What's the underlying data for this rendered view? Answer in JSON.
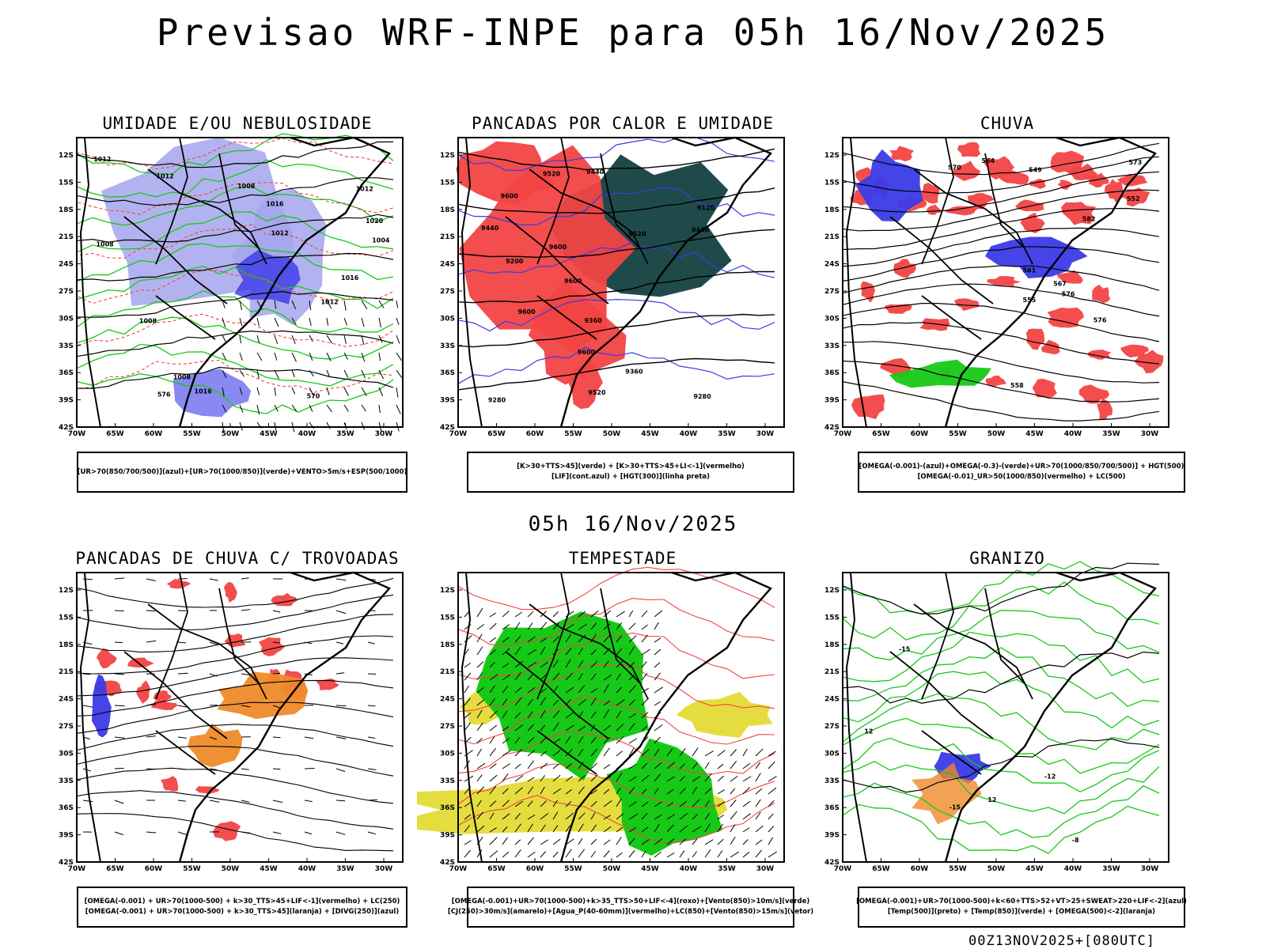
{
  "title": "Previsao WRF-INPE  para 05h 16/Nov/2025",
  "mid_date": "05h 16/Nov/2025",
  "run_label": "00Z13NOV2025+[080UTC]",
  "axes": {
    "lat_labels": [
      "12S",
      "15S",
      "18S",
      "21S",
      "24S",
      "27S",
      "30S",
      "33S",
      "36S",
      "39S",
      "42S"
    ],
    "lon_labels": [
      "70W",
      "65W",
      "60W",
      "55W",
      "50W",
      "45W",
      "40W",
      "35W",
      "30W"
    ]
  },
  "colors": {
    "lightblue": "#a4a4ef",
    "blue": "#3a3ae8",
    "green": "#17c917",
    "red": "#f24343",
    "darkteal": "#1f4a4a",
    "orange": "#ef8a2a",
    "yellow": "#e2d92a",
    "purple": "#8a2ae2"
  },
  "chart_data": [
    {
      "type": "heatmap",
      "id": "umidade",
      "title": "UMIDADE E/OU NEBULOSIDADE",
      "legend": [
        "[UR>70(850/700/500)](azul)+[UR>70(1000/850)](verde)+VENTO>5m/s+ESP(500/1000)"
      ],
      "contour_labels": [
        "1008",
        "1012",
        "1016",
        "1012",
        "1008",
        "1012",
        "1016",
        "1020",
        "1004",
        "1008",
        "1012",
        "1016",
        "1012",
        "1008",
        "576",
        "570"
      ]
    },
    {
      "type": "heatmap",
      "id": "pancadas_calor",
      "title": "PANCADAS POR CALOR E UMIDADE",
      "legend": [
        "[K>30+TTS>45](verde) + [K>30+TTS>45+LI<-1](vermelho)",
        "[LIF](cont.azul) + [HGT(300)](linha preta)"
      ],
      "contour_labels": [
        "9600",
        "9600",
        "9600",
        "9600",
        "9520",
        "9600",
        "9440",
        "9520",
        "9520",
        "9440",
        "9360",
        "9440",
        "9360",
        "9200",
        "9120",
        "9280",
        "9280"
      ]
    },
    {
      "type": "heatmap",
      "id": "chuva",
      "title": "CHUVA",
      "legend": [
        "[OMEGA(-0.001)-(azul)+OMEGA(-0.3)-(verde)+UR>70(1000/850/700/500)] + HGT(500)",
        "[OMEGA(-0.01)_UR>50(1000/850)(vermelho) + LC(500)"
      ],
      "contour_labels": [
        "582",
        "576",
        "576",
        "573",
        "570",
        "567",
        "564",
        "561",
        "558",
        "555",
        "552",
        "549"
      ]
    },
    {
      "type": "heatmap",
      "id": "trovoadas",
      "title": "PANCADAS DE CHUVA C/ TROVOADAS",
      "legend": [
        "[OMEGA(-0.001) + UR>70(1000-500) + k>30_TTS>45+LIF<-1](vermelho) + LC(250)",
        "[OMEGA(-0.001) + UR>70(1000-500) + k>30_TTS>45](laranja) + [DIVG(250)](azul)"
      ],
      "contour_labels": []
    },
    {
      "type": "heatmap",
      "id": "tempestade",
      "title": "TEMPESTADE",
      "legend": [
        "[OMEGA(-0.001)+UR>70(1000-500)+k>35_TTS>50+LIF<-4](roxo)+[Vento(850)>10m/s](verde)",
        "[CJ(250)>30m/s](amarelo)+[Agua_P(40-60mm)](vermelho)+LC(850)+[Vento(850)>15m/s](vetor)"
      ],
      "contour_labels": []
    },
    {
      "type": "heatmap",
      "id": "granizo",
      "title": "GRANIZO",
      "legend": [
        "[OMEGA(-0.001)+UR>70(1000-500)+k<60+TTS>52+VT>25+SWEAT>220+LIF<-2](azul)",
        "[Temp(500)](preto) + [Temp(850)](verde) + [OMEGA(500)<-2](laranja)"
      ],
      "contour_labels": [
        "-8",
        "12",
        "-15",
        "12",
        "-12",
        "-15"
      ]
    }
  ]
}
